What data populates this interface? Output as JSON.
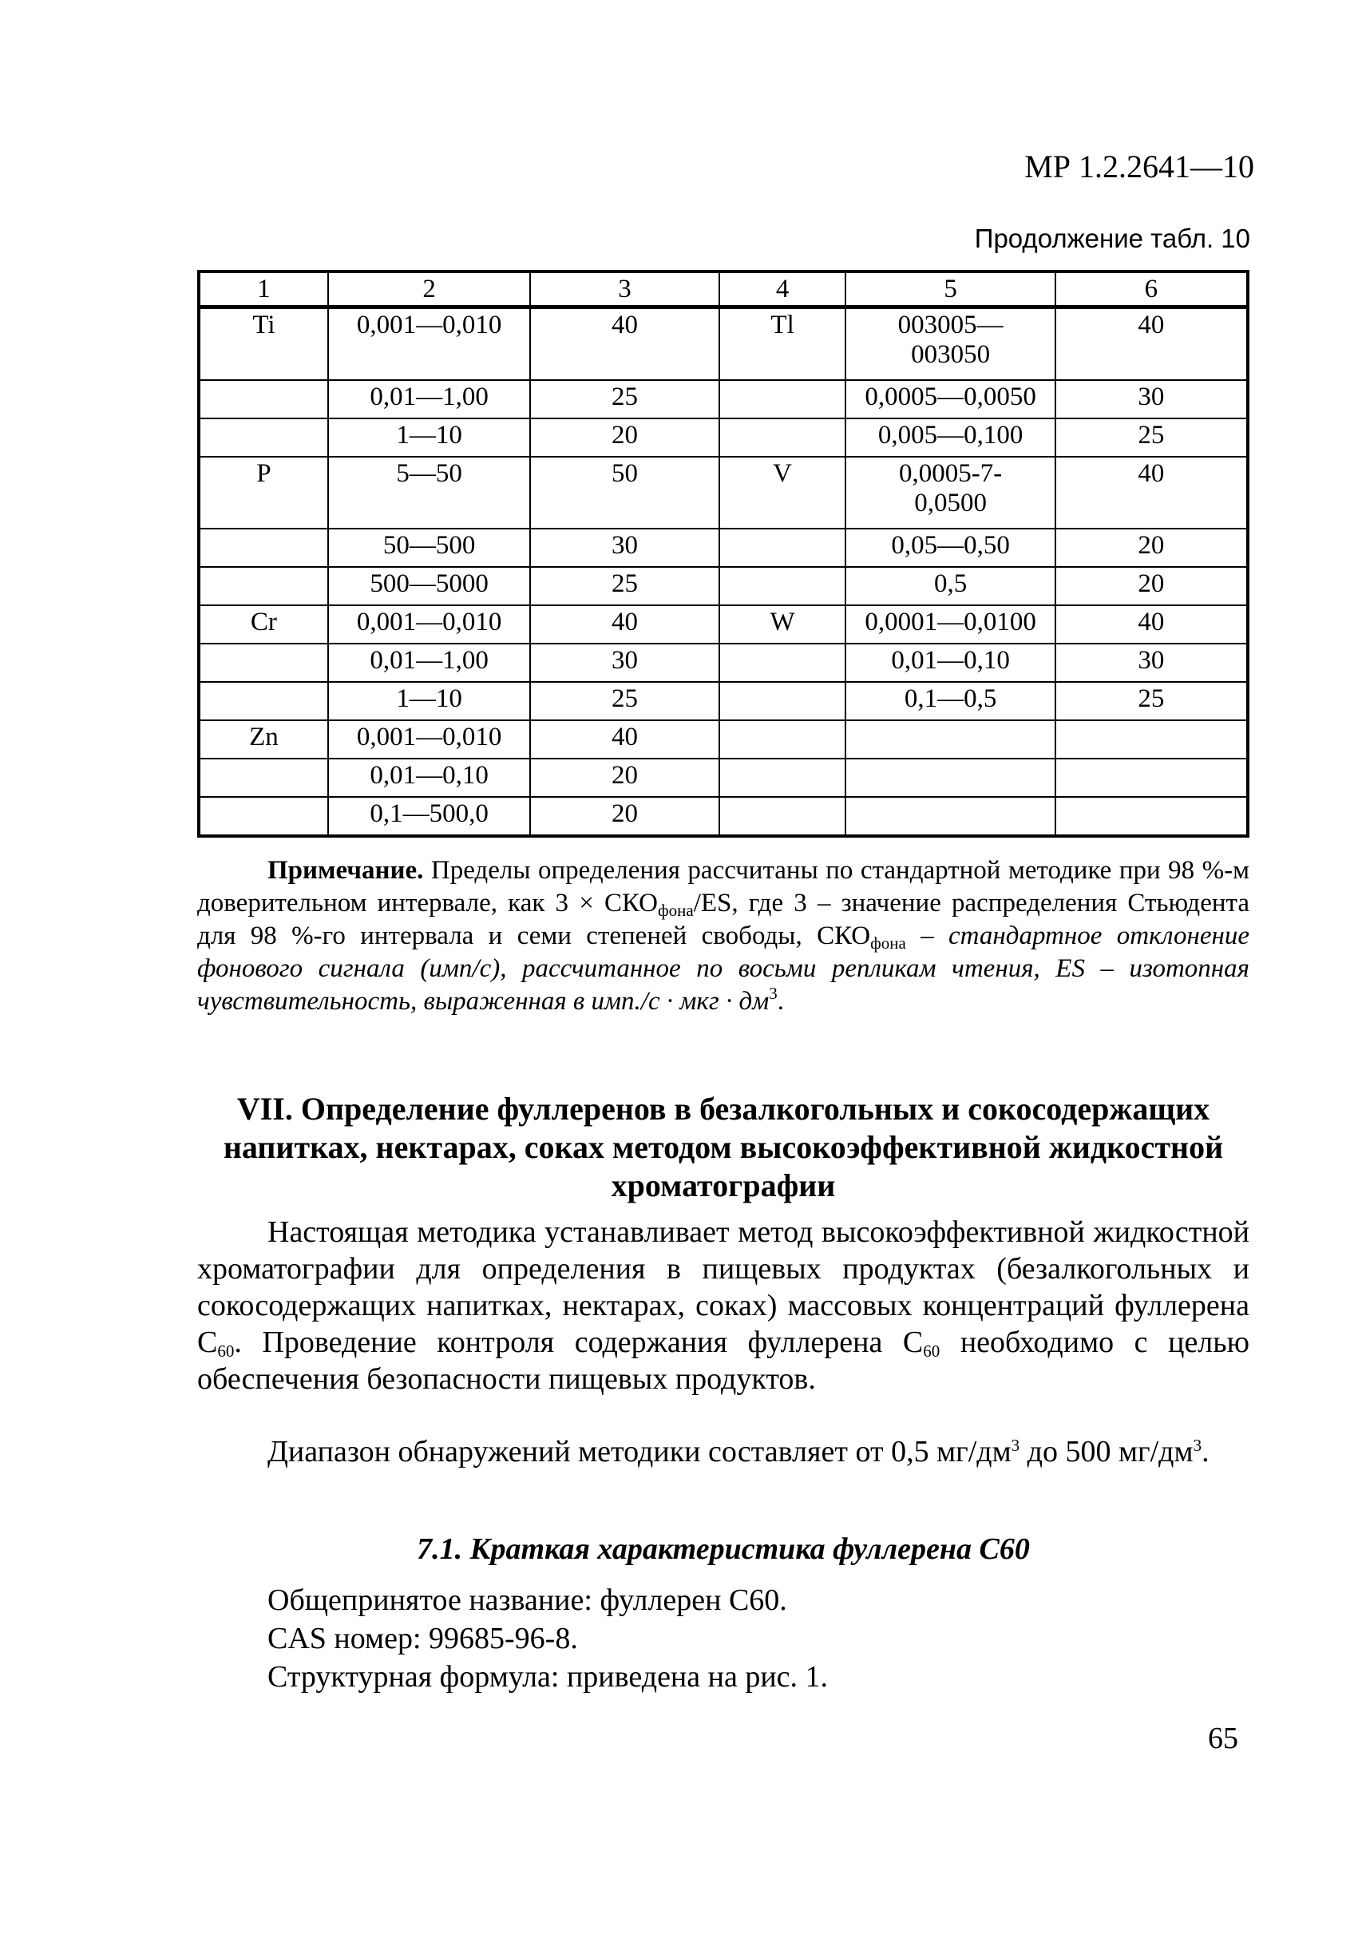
{
  "header": {
    "doc_code": "МР 1.2.2641—10",
    "continuation": "Продолжение табл. 10"
  },
  "table": {
    "headers": [
      "1",
      "2",
      "3",
      "4",
      "5",
      "6"
    ],
    "rows": [
      [
        "Ti",
        "0,001—0,010",
        "40",
        "Tl",
        "003005—\n003050",
        "40"
      ],
      [
        "",
        "0,01—1,00",
        "25",
        "",
        "0,0005—0,0050",
        "30"
      ],
      [
        "",
        "1—10",
        "20",
        "",
        "0,005—0,100",
        "25"
      ],
      [
        "P",
        "5—50",
        "50",
        "V",
        "0,0005-7-\n0,0500",
        "40"
      ],
      [
        "",
        "50—500",
        "30",
        "",
        "0,05—0,50",
        "20"
      ],
      [
        "",
        "500—5000",
        "25",
        "",
        "0,5",
        "20"
      ],
      [
        "Cr",
        "0,001—0,010",
        "40",
        "W",
        "0,0001—0,0100",
        "40"
      ],
      [
        "",
        "0,01—1,00",
        "30",
        "",
        "0,01—0,10",
        "30"
      ],
      [
        "",
        "1—10",
        "25",
        "",
        "0,1—0,5",
        "25"
      ],
      [
        "Zn",
        "0,001—0,010",
        "40",
        "",
        "",
        ""
      ],
      [
        "",
        "0,01—0,10",
        "20",
        "",
        "",
        ""
      ],
      [
        "",
        "0,1—500,0",
        "20",
        "",
        "",
        ""
      ]
    ]
  },
  "note": {
    "label": "Примечание.",
    "t1": " Пределы определения рассчитаны по стандартной методике при 98 %-м доверительном интервале, как 3 × СКО",
    "s1": "фона",
    "t2": "/ES, где 3 – значение распределения Стьюдента для 98 %-го интервала и семи степеней свободы, СКО",
    "s2": "фона",
    "t3": " – стандартное отклонение фонового сигнала (имп/с), рассчитанное по восьми репликам чтения, ES – изотопная чувствительность, выраженная в имп./с · мкг · дм",
    "sup": "3",
    "end": "."
  },
  "section": {
    "heading": "VII. Определение фуллеренов в безалкогольных и сокосодержащих напитках, нектарах, соках методом высокоэффективной жидкостной хроматографии",
    "p1a": "Настоящая методика устанавливает метод высокоэффективной жидкостной хроматографии для определения в пищевых продуктах (безалкогольных и сокосодержащих напитках, нектарах, соках) массовых концентраций фуллерена С",
    "p1s": "60",
    "p1b": ". Проведение контроля содержания фуллерена С",
    "p1s2": "60",
    "p1c": " необходимо с целью обеспечения безопасности пищевых продуктов.",
    "p2a": "Диапазон обнаружений методики составляет от 0,5 мг/дм",
    "p2sup": "3",
    "p2b": " до 500 мг/дм",
    "p2sup2": "3",
    "p2c": ".",
    "subheading": "7.1. Краткая характеристика фуллерена С60",
    "lines": [
      "Общепринятое название: фуллерен С60.",
      "CAS номер: 99685-96-8.",
      "Структурная формула: приведена на рис. 1."
    ]
  },
  "page_number": "65"
}
